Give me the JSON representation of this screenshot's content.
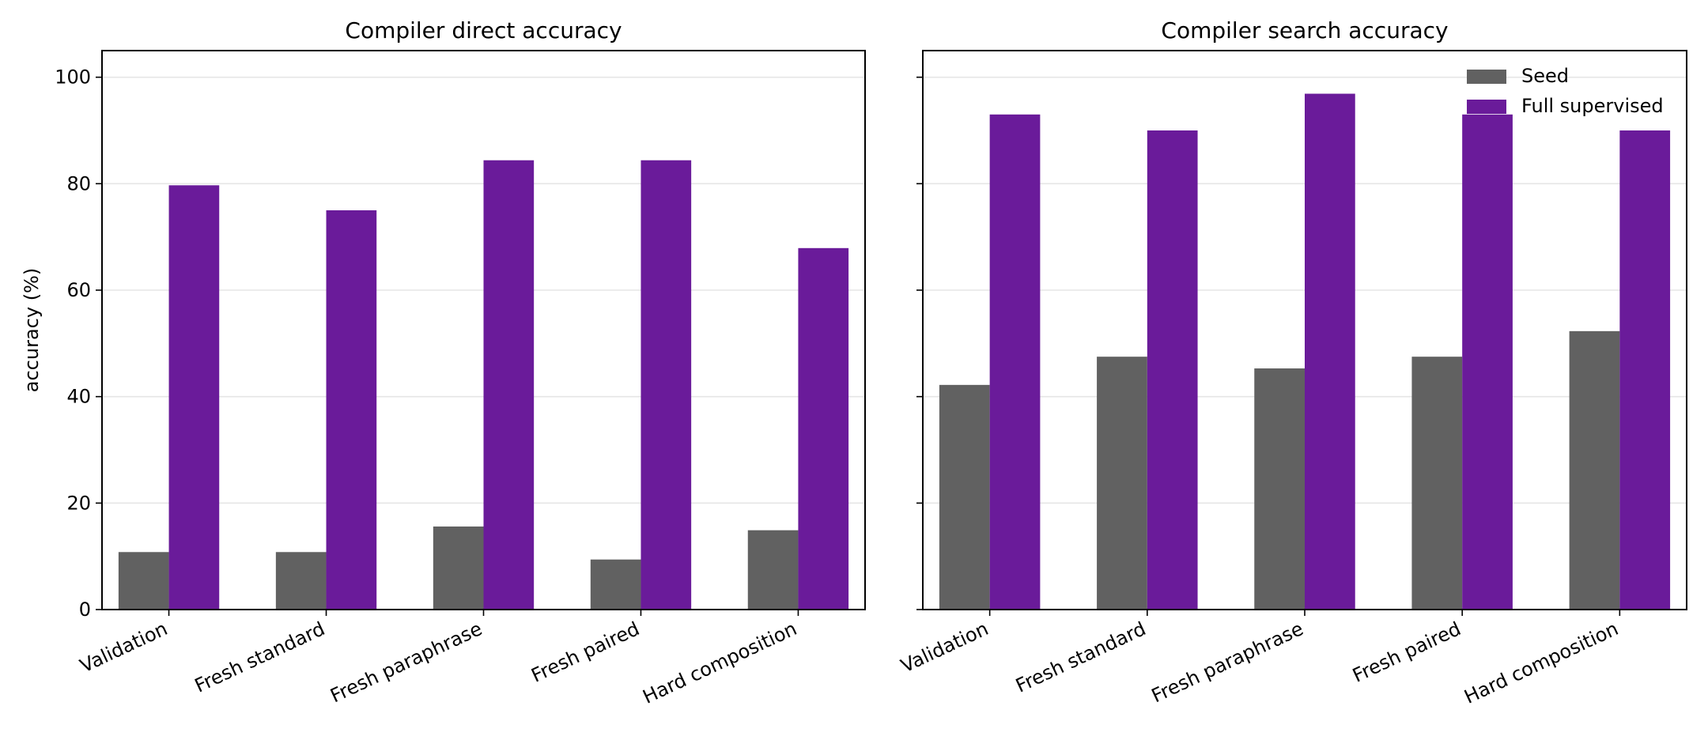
{
  "chart_data": [
    {
      "type": "bar",
      "title": "Compiler direct accuracy",
      "xlabel": "",
      "ylabel": "accuracy (%)",
      "categories": [
        "Validation",
        "Fresh standard",
        "Fresh paraphrase",
        "Fresh paired",
        "Hard composition"
      ],
      "series": [
        {
          "name": "Seed",
          "values": [
            10.8,
            10.8,
            15.6,
            9.4,
            14.9
          ],
          "color": "#616161"
        },
        {
          "name": "Full supervised",
          "values": [
            79.7,
            75.0,
            84.4,
            84.4,
            67.9
          ],
          "color": "#6a1b9a"
        }
      ],
      "ylim": [
        0,
        105
      ],
      "yticks": [
        0,
        20,
        40,
        60,
        80,
        100
      ],
      "grid": "horizontal",
      "legend": null
    },
    {
      "type": "bar",
      "title": "Compiler search accuracy",
      "xlabel": "",
      "ylabel": "",
      "categories": [
        "Validation",
        "Fresh standard",
        "Fresh paraphrase",
        "Fresh paired",
        "Hard composition"
      ],
      "series": [
        {
          "name": "Seed",
          "values": [
            42.2,
            47.5,
            45.3,
            47.5,
            52.3
          ],
          "color": "#616161"
        },
        {
          "name": "Full supervised",
          "values": [
            93.0,
            90.0,
            96.9,
            93.0,
            90.0
          ],
          "color": "#6a1b9a"
        }
      ],
      "ylim": [
        0,
        105
      ],
      "yticks": [
        0,
        20,
        40,
        60,
        80,
        100
      ],
      "grid": "horizontal",
      "legend": "upper right"
    }
  ]
}
